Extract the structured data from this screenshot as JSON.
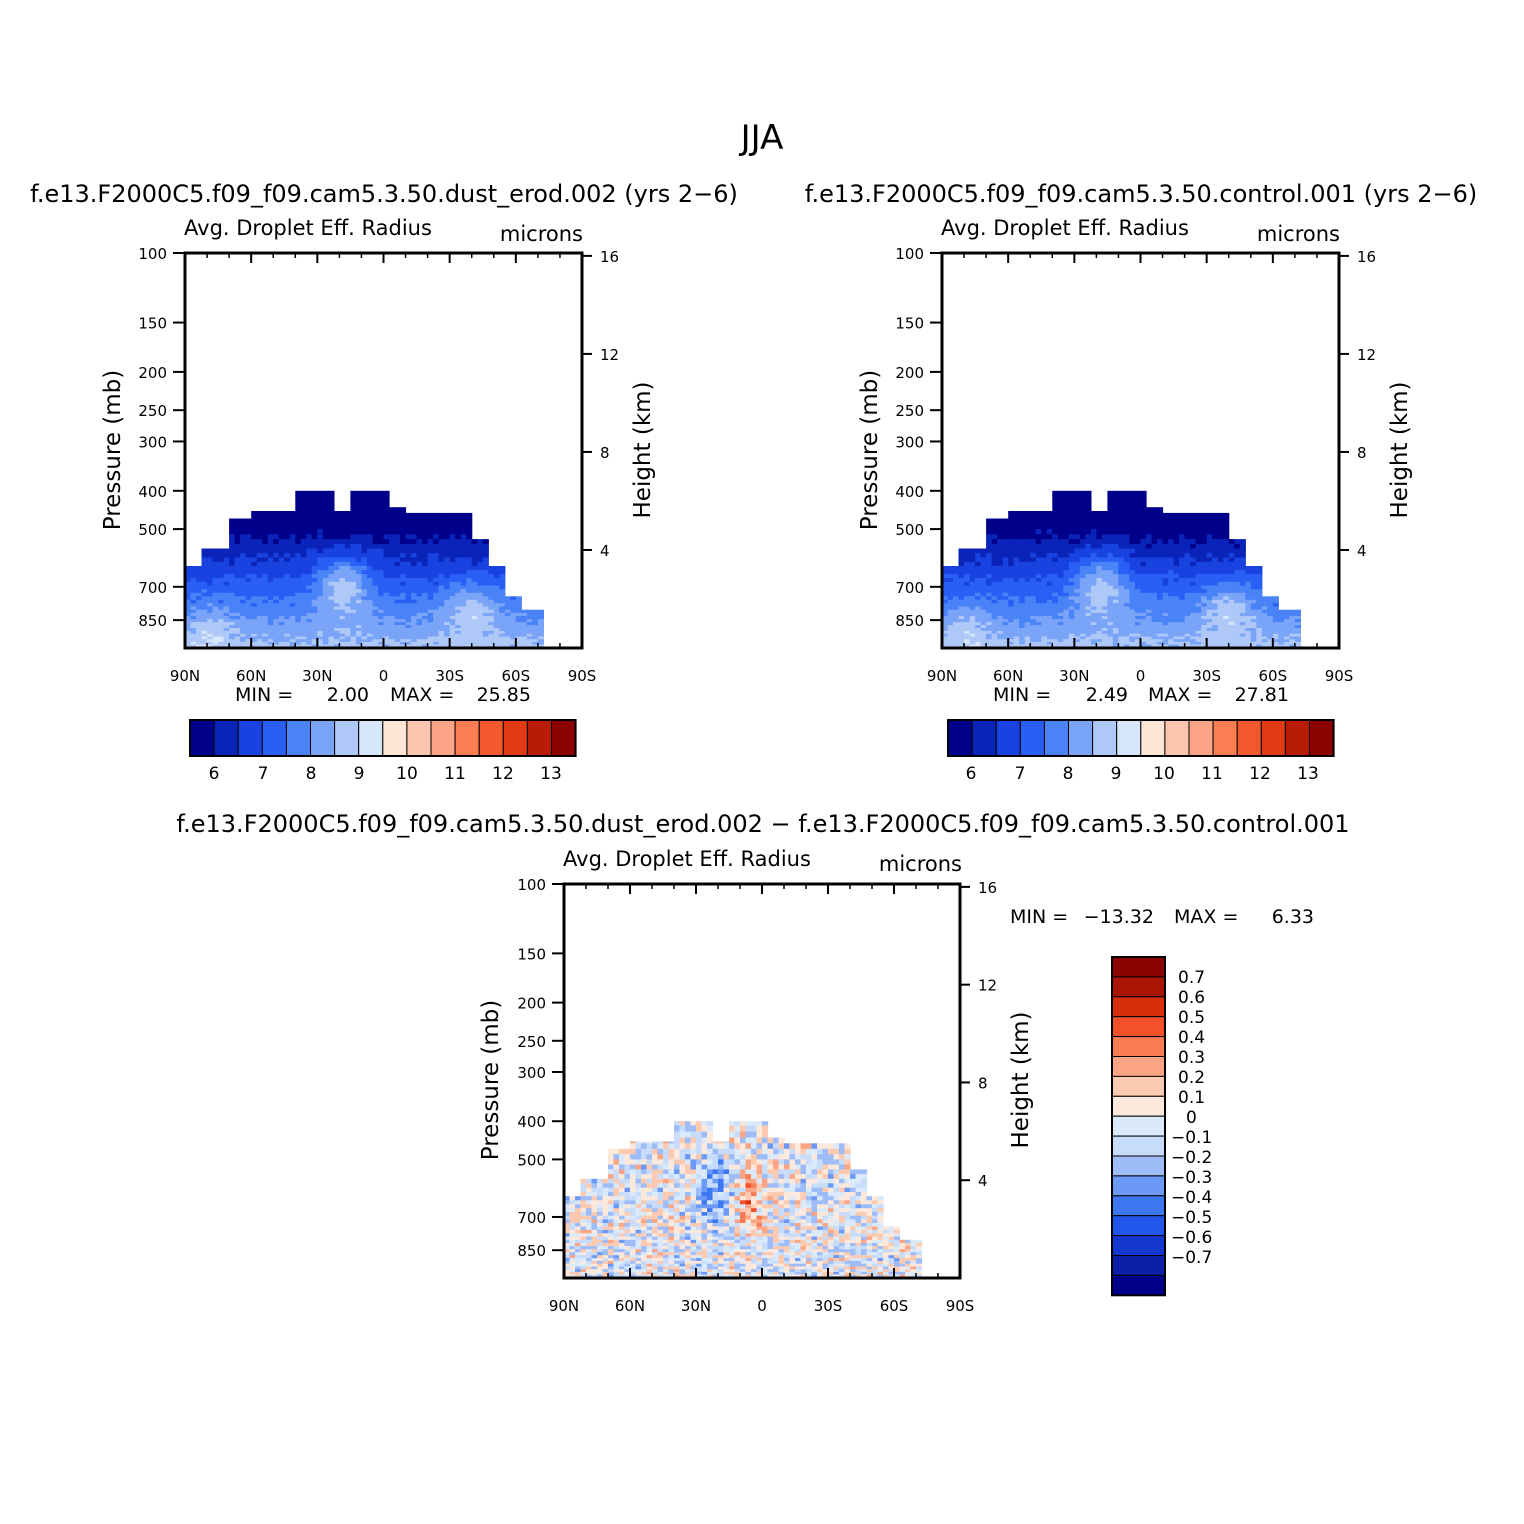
{
  "figure_title": "JJA",
  "colors": {
    "sequential_13": [
      "#00008b",
      "#0a23b8",
      "#1843e0",
      "#2a5ff5",
      "#4a82f7",
      "#7aa4f7",
      "#aec8f8",
      "#d6e6fb",
      "#fde6d6",
      "#fcc6ae",
      "#fca586",
      "#fb7e52",
      "#f55a2e",
      "#e23a14",
      "#b81c06",
      "#8b0000"
    ],
    "diverging_16": [
      "#00008b",
      "#0b1fa8",
      "#1438cf",
      "#2156ea",
      "#3d77f3",
      "#6b99f5",
      "#9ebcf7",
      "#c7dbfa",
      "#dbeafb",
      "#fde9dc",
      "#fccab0",
      "#fba584",
      "#f97c54",
      "#f2512a",
      "#d72e0c",
      "#a91404",
      "#8b0000"
    ]
  },
  "chart_data": [
    {
      "type": "heatmap",
      "panel_title": "f.e13.F2000C5.f09_f09.cam5.3.50.dust_erod.002 (yrs 2−6)",
      "left_label": "Avg. Droplet Eff. Radius",
      "right_label": "microns",
      "ylabel": "Pressure (mb)",
      "ylabel_right": "Height (km)",
      "x_ticks": [
        "90N",
        "60N",
        "30N",
        "0",
        "30S",
        "60S",
        "90S"
      ],
      "y_ticks": [
        "100",
        "150",
        "200",
        "250",
        "300",
        "400",
        "500",
        "700",
        "850"
      ],
      "y_ticks_right": [
        "16",
        "12",
        "8",
        "4"
      ],
      "min_label": "MIN =",
      "min_value": "2.00",
      "max_label": "MAX =",
      "max_value": "25.85",
      "colorbar_labels": [
        "6",
        "7",
        "8",
        "9",
        "10",
        "11",
        "12",
        "13"
      ],
      "ylim": [
        1000,
        100
      ],
      "xlim": [
        90,
        -90
      ]
    },
    {
      "type": "heatmap",
      "panel_title": "f.e13.F2000C5.f09_f09.cam5.3.50.control.001 (yrs 2−6)",
      "left_label": "Avg. Droplet Eff. Radius",
      "right_label": "microns",
      "ylabel": "Pressure (mb)",
      "ylabel_right": "Height (km)",
      "x_ticks": [
        "90N",
        "60N",
        "30N",
        "0",
        "30S",
        "60S",
        "90S"
      ],
      "y_ticks": [
        "100",
        "150",
        "200",
        "250",
        "300",
        "400",
        "500",
        "700",
        "850"
      ],
      "y_ticks_right": [
        "16",
        "12",
        "8",
        "4"
      ],
      "min_label": "MIN =",
      "min_value": "2.49",
      "max_label": "MAX =",
      "max_value": "27.81",
      "colorbar_labels": [
        "6",
        "7",
        "8",
        "9",
        "10",
        "11",
        "12",
        "13"
      ],
      "ylim": [
        1000,
        100
      ],
      "xlim": [
        90,
        -90
      ]
    },
    {
      "type": "heatmap",
      "panel_title": "f.e13.F2000C5.f09_f09.cam5.3.50.dust_erod.002 − f.e13.F2000C5.f09_f09.cam5.3.50.control.001",
      "left_label": "Avg. Droplet Eff. Radius",
      "right_label": "microns",
      "ylabel": "Pressure (mb)",
      "ylabel_right": "Height (km)",
      "x_ticks": [
        "90N",
        "60N",
        "30N",
        "0",
        "30S",
        "60S",
        "90S"
      ],
      "y_ticks": [
        "100",
        "150",
        "200",
        "250",
        "300",
        "400",
        "500",
        "700",
        "850"
      ],
      "y_ticks_right": [
        "16",
        "12",
        "8",
        "4"
      ],
      "min_label": "MIN =",
      "min_value": "−13.32",
      "max_label": "MAX =",
      "max_value": "6.33",
      "colorbar_labels": [
        "0.7",
        "0.6",
        "0.5",
        "0.4",
        "0.3",
        "0.2",
        "0.1",
        "0",
        "−0.1",
        "−0.2",
        "−0.3",
        "−0.4",
        "−0.5",
        "−0.6",
        "−0.7"
      ],
      "ylim": [
        1000,
        100
      ],
      "xlim": [
        90,
        -90
      ]
    }
  ]
}
